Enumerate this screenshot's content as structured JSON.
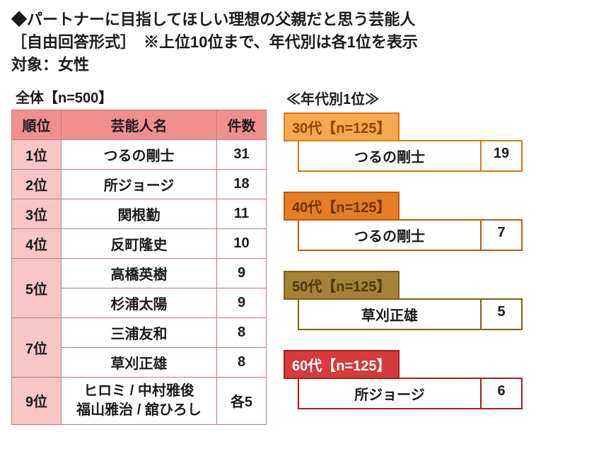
{
  "headline": {
    "line1": "◆パートナーに目指してほしい理想の父親だと思う芸能人",
    "line2": "［自由回答形式］　※上位10位まで、年代別は各1位を表示",
    "line3": "対象：女性"
  },
  "overall": {
    "caption": "全体【n=500】",
    "columns": {
      "rank": "順位",
      "name": "芸能人名",
      "count": "件数"
    },
    "col_widths": {
      "rank": 70,
      "name": 220,
      "count": 70
    },
    "header_bg": "#f18f8f",
    "rank_bg": "#f9c6c6",
    "cell_bg": "#ffffff",
    "border_color": "#c07878",
    "text_color": "#1a1a1a",
    "rows": [
      {
        "rank": "1位",
        "name": "つるの剛士",
        "count": "31"
      },
      {
        "rank": "2位",
        "name": "所ジョージ",
        "count": "18"
      },
      {
        "rank": "3位",
        "name": "関根勤",
        "count": "11"
      },
      {
        "rank": "4位",
        "name": "反町隆史",
        "count": "10"
      },
      {
        "rank": "5位",
        "name": "高橋英樹",
        "count": "9",
        "rowspan": 2
      },
      {
        "name": "杉浦太陽",
        "count": "9"
      },
      {
        "rank": "7位",
        "name": "三浦友和",
        "count": "8",
        "rowspan": 2
      },
      {
        "name": "草刈正雄",
        "count": "8"
      },
      {
        "rank": "9位",
        "name_lines": [
          "ヒロミ / 中村雅俊",
          "福山雅治 / 舘ひろし"
        ],
        "count": "各5"
      }
    ]
  },
  "by_age": {
    "title": "≪年代別1位≫",
    "groups": [
      {
        "label": "30代【n=125】",
        "name": "つるの剛士",
        "count": "19",
        "label_bg": "#f5a84e",
        "border": "#d87a18",
        "text": "#8a4600"
      },
      {
        "label": "40代【n=125】",
        "name": "つるの剛士",
        "count": "7",
        "label_bg": "#e67e22",
        "border": "#b85c0f",
        "text": "#6a3500"
      },
      {
        "label": "50代【n=125】",
        "name": "草刈正雄",
        "count": "5",
        "label_bg": "#a68136",
        "border": "#7d5f20",
        "text": "#4a3810"
      },
      {
        "label": "60代【n=125】",
        "name": "所ジョージ",
        "count": "6",
        "label_bg": "#d63a3a",
        "border": "#a81e1e",
        "text": "#ffffff"
      }
    ]
  }
}
